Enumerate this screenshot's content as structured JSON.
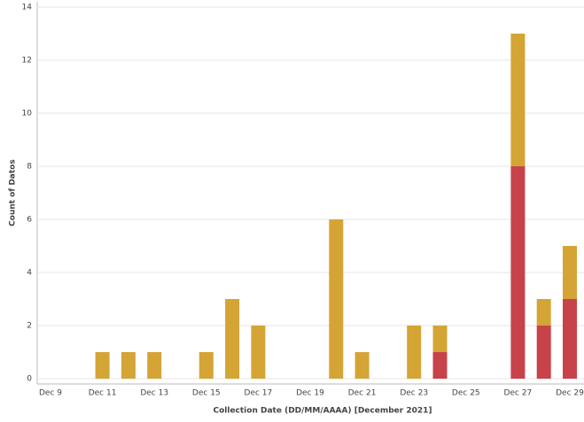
{
  "chart_data": {
    "type": "stacked_bar",
    "x_label": "Collection Date (DD/MM/AAAA) [December 2021]",
    "y_label": "Count of Datos",
    "categories": [
      "Dec 9",
      null,
      "Dec 11",
      null,
      "Dec 13",
      null,
      "Dec 15",
      null,
      "Dec 17",
      null,
      "Dec 19",
      null,
      "Dec 21",
      null,
      "Dec 23",
      null,
      "Dec 25",
      null,
      "Dec 27",
      null,
      "Dec 29",
      null
    ],
    "series": [
      {
        "color": "#c8424a",
        "values": [
          0,
          0,
          0,
          0,
          0,
          0,
          0,
          0,
          0,
          0,
          0,
          0,
          0,
          0,
          0,
          1,
          0,
          0,
          8,
          2,
          3,
          0
        ]
      },
      {
        "color": "#d4a435",
        "values": [
          0,
          0,
          1,
          1,
          1,
          0,
          1,
          3,
          2,
          0,
          0,
          6,
          1,
          0,
          2,
          1,
          0,
          0,
          5,
          1,
          2,
          0
        ]
      }
    ],
    "ylim": [
      0,
      14
    ],
    "yticks": [
      0,
      2,
      4,
      6,
      8,
      10,
      12,
      14
    ],
    "grid": true
  }
}
